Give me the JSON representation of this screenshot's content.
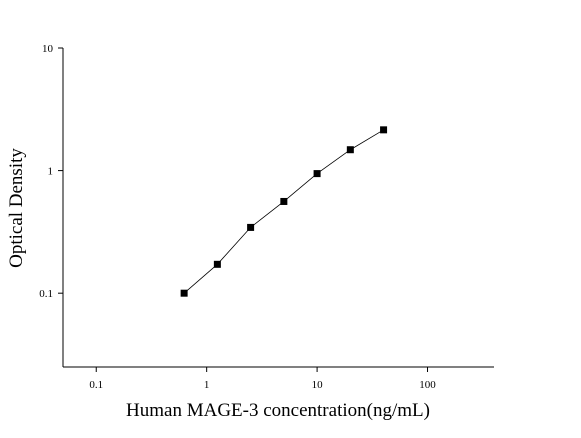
{
  "chart_data": {
    "type": "scatter",
    "x_label": "Human MAGE-3 concentration(ng/mL)",
    "y_label": "Optical Density",
    "x_scale": "log",
    "y_scale": "log",
    "xlim": [
      0.05,
      400
    ],
    "ylim": [
      0.025,
      10
    ],
    "xticks": [
      0.1,
      1,
      10,
      100
    ],
    "yticks": [
      0.1,
      1,
      10
    ],
    "series": [
      {
        "color": "#000000",
        "x": [
          0.625,
          1.25,
          2.5,
          5,
          10,
          20,
          40
        ],
        "values": [
          0.1,
          0.172,
          0.344,
          0.56,
          0.945,
          1.48,
          2.15
        ]
      }
    ]
  }
}
